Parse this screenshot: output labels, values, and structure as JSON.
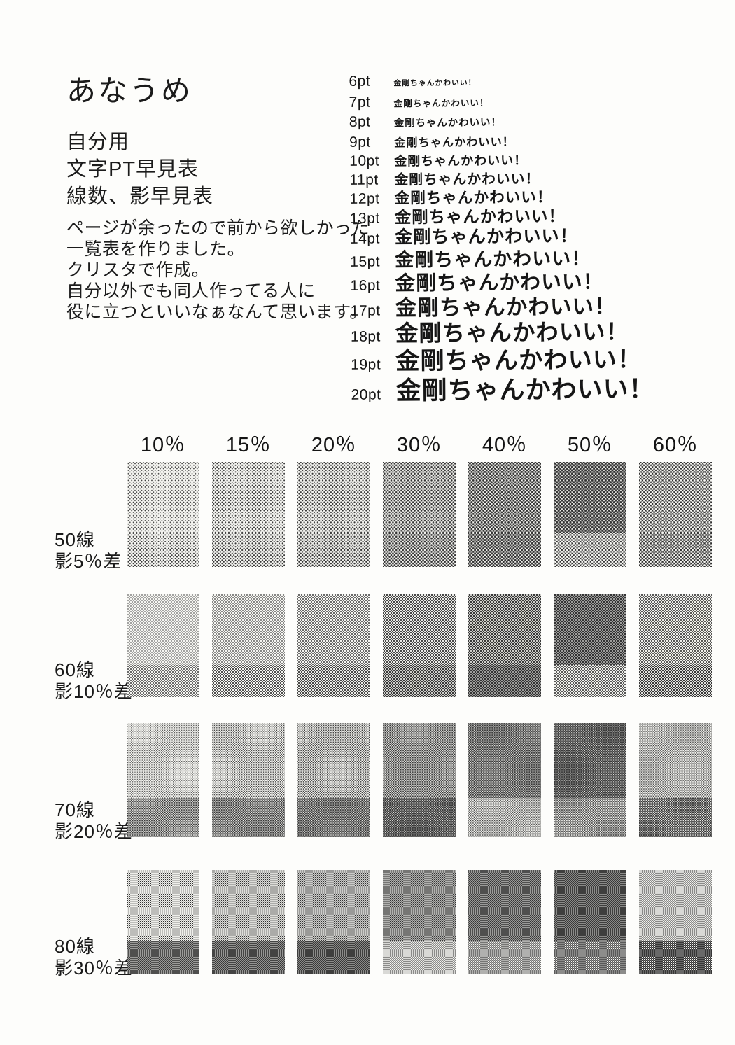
{
  "page": {
    "title": "あなうめ",
    "subtitle_lines": [
      "自分用",
      "文字PT早見表",
      "線数、影早見表"
    ],
    "note_lines": [
      "ページが余ったので前から欲しかった",
      "一覧表を作りました。",
      "クリスタで作成。",
      "自分以外でも同人作ってる人に",
      "役に立つといいなぁなんて思います。"
    ]
  },
  "font_samples": {
    "sample_text": "金剛ちゃんかわいい！",
    "label_suffix": "pt",
    "sizes_pt": [
      6,
      7,
      8,
      9,
      10,
      11,
      12,
      13,
      14,
      15,
      16,
      17,
      18,
      19,
      20
    ]
  },
  "tone_table": {
    "column_headers": [
      "10％",
      "15％",
      "20％",
      "30％",
      "40％",
      "50％",
      "60％"
    ],
    "column_percents": [
      10,
      15,
      20,
      30,
      40,
      50,
      60
    ],
    "rows": [
      {
        "line_label": "50線",
        "shadow_label": "影5％差",
        "lines_per_inch": 50,
        "shadow_diff": 5,
        "base_percents": [
          10,
          15,
          20,
          30,
          40,
          50,
          60
        ],
        "shadow_percents": [
          15,
          20,
          25,
          35,
          45,
          55,
          65
        ]
      },
      {
        "line_label": "60線",
        "shadow_label": "影10％差",
        "lines_per_inch": 60,
        "shadow_diff": 10,
        "base_percents": [
          10,
          15,
          20,
          30,
          40,
          50,
          60
        ],
        "shadow_percents": [
          20,
          25,
          30,
          40,
          50,
          60,
          70
        ]
      },
      {
        "line_label": "70線",
        "shadow_label": "影20％差",
        "lines_per_inch": 70,
        "shadow_diff": 20,
        "base_percents": [
          10,
          15,
          20,
          30,
          40,
          50,
          60
        ],
        "shadow_percents": [
          30,
          35,
          40,
          50,
          60,
          70,
          80
        ]
      },
      {
        "line_label": "80線",
        "shadow_label": "影30％差",
        "lines_per_inch": 80,
        "shadow_diff": 30,
        "base_percents": [
          10,
          15,
          20,
          30,
          40,
          50,
          60
        ],
        "shadow_percents": [
          40,
          45,
          50,
          60,
          70,
          80,
          90
        ]
      }
    ]
  },
  "colors": {
    "paper": "#fdfdfb",
    "swatch_paper": "#f6f6f2",
    "ink": "#1b1b1b",
    "halftone_dot": "#333333"
  }
}
